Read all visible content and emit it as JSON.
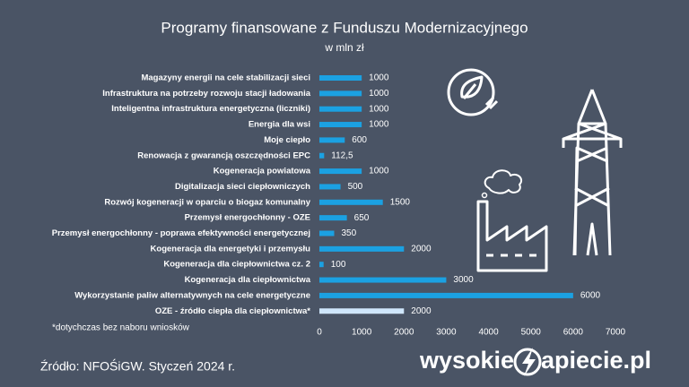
{
  "chart_data": {
    "type": "bar",
    "orientation": "horizontal",
    "title": "Programy finansowane z Funduszu Modernizacyjnego",
    "subtitle": "w mln zł",
    "categories": [
      "Magazyny energii na cele stabilizacji sieci",
      "Infrastruktura na potrzeby rozwoju stacji ładowania",
      "Inteligentna infrastruktura energetyczna (liczniki)",
      "Energia dla wsi",
      "Moje ciepło",
      "Renowacja z gwarancją oszczędności EPC",
      "Kogeneracja powiatowa",
      "Digitalizacja sieci ciepłowniczych",
      "Rozwój kogeneracji w oparciu o biogaz komunalny",
      "Przemysł energochłonny - OZE",
      "Przemysł energochłonny - poprawa efektywności energetycznej",
      "Kogeneracja dla energetyki i przemysłu",
      "Kogeneracja dla ciepłownictwa cz. 2",
      "Kogeneracja dla ciepłownictwa",
      "Wykorzystanie paliw alternatywnych na cele energetyczne",
      "OZE - źródło ciepła dla ciepłownictwa*"
    ],
    "values": [
      1000,
      1000,
      1000,
      1000,
      600,
      112.5,
      1000,
      500,
      1500,
      650,
      350,
      2000,
      100,
      3000,
      6000,
      2000
    ],
    "value_labels": [
      "1000",
      "1000",
      "1000",
      "1000",
      "600",
      "112,5",
      "1000",
      "500",
      "1500",
      "650",
      "350",
      "2000",
      "100",
      "3000",
      "6000",
      "2000"
    ],
    "colors": [
      "#1ba1e2",
      "#1ba1e2",
      "#1ba1e2",
      "#1ba1e2",
      "#1ba1e2",
      "#1ba1e2",
      "#1ba1e2",
      "#1ba1e2",
      "#1ba1e2",
      "#1ba1e2",
      "#1ba1e2",
      "#1ba1e2",
      "#1ba1e2",
      "#1ba1e2",
      "#1ba1e2",
      "#cfe6fb"
    ],
    "xlim": [
      0,
      7000
    ],
    "xticks": [
      0,
      1000,
      2000,
      3000,
      4000,
      5000,
      6000,
      7000
    ],
    "grid": false,
    "footnote": "*dotychczas bez naboru wniosków",
    "source": "Źródło: NFOŚiGW. Styczeń 2024 r.",
    "logo": [
      "wysokie",
      "apiecie.pl"
    ]
  }
}
